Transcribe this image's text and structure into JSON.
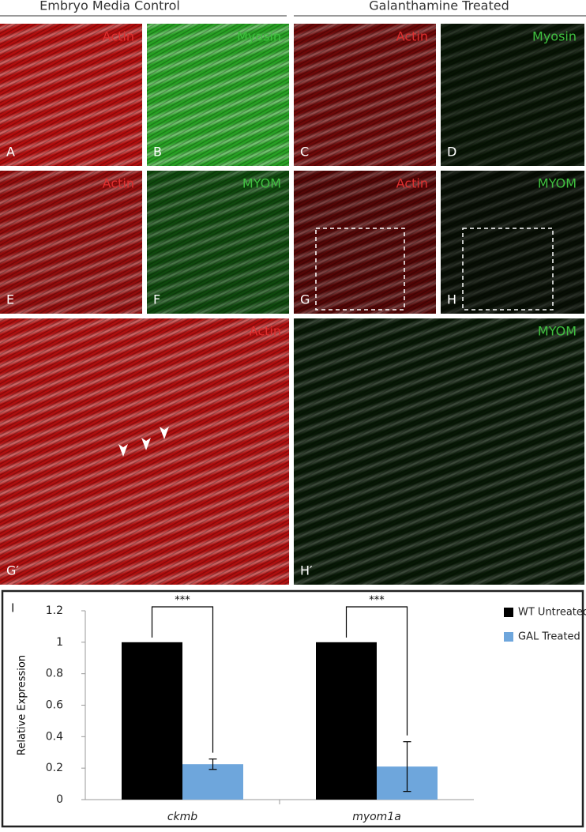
{
  "headers": [
    "Embryo Media Control",
    "Galanthamine Treated"
  ],
  "panels": [
    {
      "letter": "A",
      "stain": "Actin"
    },
    {
      "letter": "B",
      "stain": "Myosin"
    },
    {
      "letter": "C",
      "stain": "Actin"
    },
    {
      "letter": "D",
      "stain": "Myosin"
    },
    {
      "letter": "E",
      "stain": "Actin"
    },
    {
      "letter": "F",
      "stain": "MYOM"
    },
    {
      "letter": "G",
      "stain": "Actin"
    },
    {
      "letter": "H",
      "stain": "MYOM"
    },
    {
      "letter": "G′",
      "stain": "Actin"
    },
    {
      "letter": "H′",
      "stain": "MYOM"
    }
  ],
  "chart_data": {
    "type": "bar",
    "panel_label": "I",
    "ylabel": "Relative Expression",
    "categories": [
      "ckmb",
      "myom1a"
    ],
    "series": [
      {
        "name": "WT Untreated",
        "color": "#000000",
        "values": [
          1,
          1
        ]
      },
      {
        "name": "GAL Treated",
        "color": "#6ea6dc",
        "values": [
          0.225,
          0.21
        ],
        "errors": [
          0.033,
          0.158
        ]
      }
    ],
    "annotations": [
      "***",
      "***"
    ],
    "ylim": [
      0,
      1.2
    ],
    "yticks": [
      0,
      0.2,
      0.4,
      0.6,
      0.8,
      1,
      1.2
    ],
    "legend": "right"
  }
}
